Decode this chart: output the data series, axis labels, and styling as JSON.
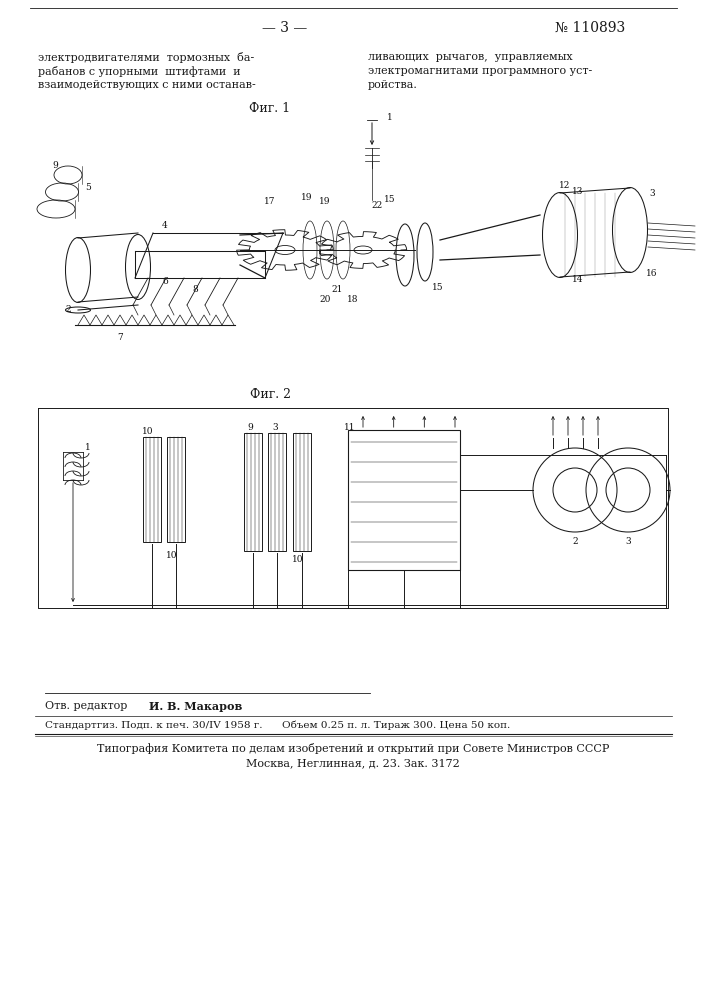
{
  "page_number": "— 3 —",
  "patent_number": "№ 110893",
  "header_left_lines": [
    "электродвигателями  тормозных  ба-",
    "рабанов с упорными  штифтами  и",
    "взаимодействующих с ними останав-"
  ],
  "header_right_lines": [
    "ливающих  рычагов,  управляемых",
    "электромагнитами программного уст-",
    "ройства."
  ],
  "fig1_label": "Фиг. 1",
  "fig2_label": "Фиг. 2",
  "footer_editor_prefix": "Отв. редактор ",
  "footer_editor_name": "И. В. Макаров",
  "footer_pub": "Стандартгиз. Подп. к печ. 30/IV 1958 г.      Объем 0.25 п. л. Тираж 300. Цена 50 коп.",
  "footer_print1": "Типография Комитета по делам изобретений и открытий при Совете Министров СССР",
  "footer_print2": "Москва, Неглинная, д. 23. Зак. 3172",
  "bg_color": "#ffffff",
  "text_color": "#1a1a1a",
  "line_color": "#1a1a1a"
}
